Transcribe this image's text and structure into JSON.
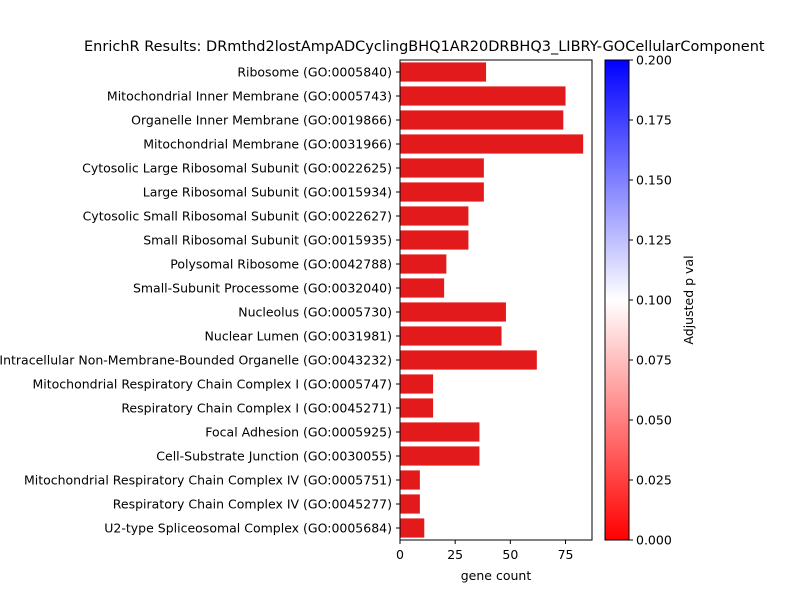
{
  "chart_data": {
    "type": "bar",
    "orientation": "horizontal",
    "title": "EnrichR Results: DRmthd2lostAmpADCyclingBHQ1AR20DRBHQ3_LIBRY-GOCellularComponent",
    "xlabel": "gene count",
    "ylabel": "",
    "xlim": [
      0,
      87
    ],
    "xticks": [
      0,
      25,
      50,
      75
    ],
    "categories": [
      "Ribosome (GO:0005840)",
      "Mitochondrial Inner Membrane (GO:0005743)",
      "Organelle Inner Membrane (GO:0019866)",
      "Mitochondrial Membrane (GO:0031966)",
      "Cytosolic Large Ribosomal Subunit (GO:0022625)",
      "Large Ribosomal Subunit (GO:0015934)",
      "Cytosolic Small Ribosomal Subunit (GO:0022627)",
      "Small Ribosomal Subunit (GO:0015935)",
      "Polysomal Ribosome (GO:0042788)",
      "Small-Subunit Processome (GO:0032040)",
      "Nucleolus (GO:0005730)",
      "Nuclear Lumen (GO:0031981)",
      "Intracellular Non-Membrane-Bounded Organelle (GO:0043232)",
      "Mitochondrial Respiratory Chain Complex I (GO:0005747)",
      "Respiratory Chain Complex I (GO:0045271)",
      "Focal Adhesion (GO:0005925)",
      "Cell-Substrate Junction (GO:0030055)",
      "Mitochondrial Respiratory Chain Complex IV (GO:0005751)",
      "Respiratory Chain Complex IV (GO:0045277)",
      "U2-type Spliceosomal Complex (GO:0005684)"
    ],
    "values": [
      39,
      75,
      74,
      83,
      38,
      38,
      31,
      31,
      21,
      20,
      48,
      46,
      62,
      15,
      15,
      36,
      36,
      9,
      9,
      11
    ],
    "bar_color": "#e31a1c",
    "colorbar": {
      "label": "Adjusted p val",
      "min": 0.0,
      "max": 0.2,
      "colormap": [
        "#ff0000",
        "#ffffff",
        "#0000ff"
      ],
      "tick_values": [
        0.0,
        0.025,
        0.05,
        0.075,
        0.1,
        0.125,
        0.15,
        0.175,
        0.2
      ],
      "tick_labels": [
        "0.000",
        "0.025",
        "0.050",
        "0.075",
        "0.100",
        "0.125",
        "0.150",
        "0.175",
        "0.200"
      ]
    },
    "grid": false,
    "legend": "none"
  }
}
